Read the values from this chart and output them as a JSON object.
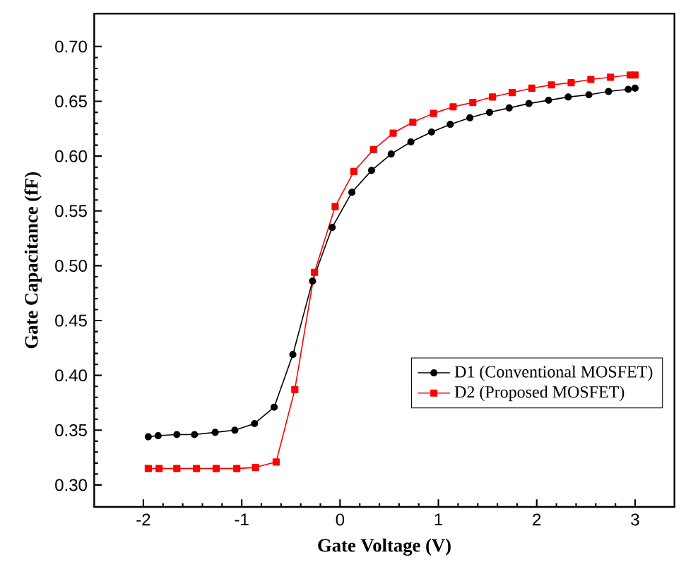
{
  "chart_data": {
    "type": "line",
    "xlabel": "Gate Voltage (V)",
    "ylabel": "Gate Capacitance (fF)",
    "xlim": [
      -2.5,
      3.4
    ],
    "ylim": [
      0.28,
      0.73
    ],
    "xticks": [
      -2,
      -1,
      0,
      1,
      2,
      3
    ],
    "yticks": [
      {
        "value": 0.3,
        "label": "0.30"
      },
      {
        "value": 0.35,
        "label": "0.35"
      },
      {
        "value": 0.4,
        "label": "0.40"
      },
      {
        "value": 0.45,
        "label": "0.45"
      },
      {
        "value": 0.5,
        "label": "0.50"
      },
      {
        "value": 0.55,
        "label": "0.55"
      },
      {
        "value": 0.6,
        "label": "0.60"
      },
      {
        "value": 0.65,
        "label": "0.65"
      },
      {
        "value": 0.7,
        "label": "0.70"
      }
    ],
    "grid": false,
    "legend": "bottom right",
    "series": [
      {
        "name": "D1 (Conventional MOSFET)",
        "color": "#000000",
        "marker": "circle",
        "x": [
          -1.95,
          -1.85,
          -1.66,
          -1.48,
          -1.27,
          -1.07,
          -0.87,
          -0.67,
          -0.48,
          -0.28,
          -0.08,
          0.12,
          0.32,
          0.52,
          0.72,
          0.93,
          1.12,
          1.32,
          1.52,
          1.72,
          1.92,
          2.12,
          2.32,
          2.53,
          2.73,
          2.93,
          3.0
        ],
        "values": [
          0.344,
          0.345,
          0.346,
          0.346,
          0.348,
          0.35,
          0.356,
          0.371,
          0.419,
          0.486,
          0.535,
          0.567,
          0.587,
          0.602,
          0.613,
          0.622,
          0.629,
          0.635,
          0.64,
          0.644,
          0.648,
          0.651,
          0.654,
          0.656,
          0.659,
          0.661,
          0.662
        ]
      },
      {
        "name": "D2 (Proposed MOSFET)",
        "color": "#ff0000",
        "marker": "square",
        "x": [
          -1.95,
          -1.84,
          -1.66,
          -1.46,
          -1.26,
          -1.05,
          -0.86,
          -0.65,
          -0.46,
          -0.26,
          -0.05,
          0.14,
          0.34,
          0.54,
          0.74,
          0.95,
          1.15,
          1.35,
          1.55,
          1.75,
          1.95,
          2.15,
          2.35,
          2.55,
          2.75,
          2.95,
          3.0
        ],
        "values": [
          0.315,
          0.315,
          0.315,
          0.315,
          0.315,
          0.315,
          0.316,
          0.321,
          0.387,
          0.494,
          0.554,
          0.586,
          0.606,
          0.621,
          0.631,
          0.639,
          0.645,
          0.649,
          0.654,
          0.658,
          0.662,
          0.665,
          0.667,
          0.67,
          0.672,
          0.674,
          0.674
        ]
      }
    ]
  }
}
